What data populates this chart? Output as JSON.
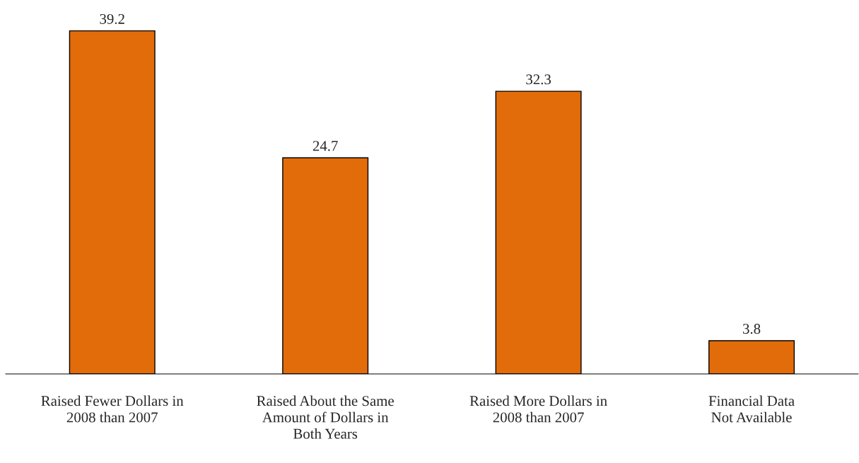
{
  "chart_data": {
    "type": "bar",
    "categories": [
      "Raised Fewer Dollars in\n2008 than 2007",
      "Raised About the Same\nAmount of Dollars in\nBoth Years",
      "Raised More Dollars in\n2008 than 2007",
      "Financial Data\nNot Available"
    ],
    "values": [
      39.2,
      24.7,
      32.3,
      3.8
    ],
    "color": "#e36c0a",
    "data_labels": true,
    "grid": false,
    "legend": false
  }
}
